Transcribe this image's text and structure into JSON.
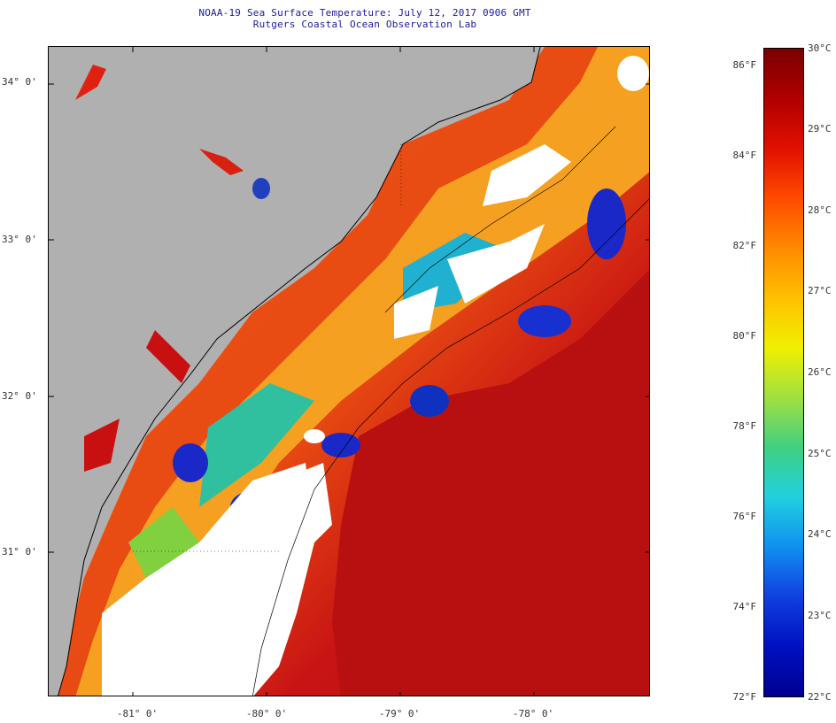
{
  "header": {
    "title": "NOAA-19 Sea Surface Temperature:  July 12, 2017 0906 GMT",
    "subtitle": "Rutgers Coastal Ocean Observation Lab"
  },
  "map": {
    "latitude_labels": [
      "34° 0'",
      "33° 0'",
      "32° 0'",
      "31° 0'"
    ],
    "longitude_labels": [
      "-81° 0'",
      "-80° 0'",
      "-79° 0'",
      "-78° 0'"
    ],
    "colors": {
      "land": "#b0b0b0",
      "cloud": "#ffffff",
      "warm": "#b81010",
      "coastline": "#000000"
    }
  },
  "colorbar": {
    "range_f": [
      72,
      86
    ],
    "range_c": [
      22,
      30
    ],
    "fahrenheit_labels": [
      "86°F",
      "84°F",
      "82°F",
      "80°F",
      "78°F",
      "76°F",
      "74°F",
      "72°F"
    ],
    "celsius_labels": [
      "30°C",
      "29°C",
      "28°C",
      "27°C",
      "26°C",
      "25°C",
      "24°C",
      "23°C",
      "22°C"
    ]
  }
}
